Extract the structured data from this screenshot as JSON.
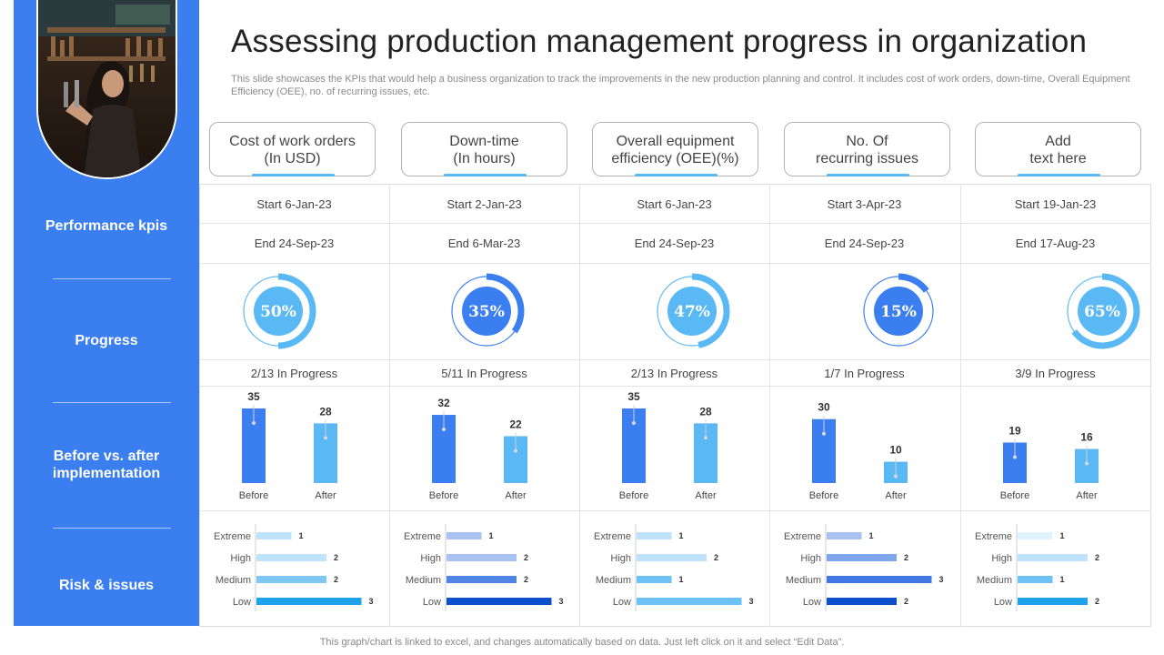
{
  "title": "Assessing production management progress in organization",
  "subtitle": "This slide showcases the KPIs that would help a business organization to track the improvements in the new production planning and control. It includes cost of work orders, down-time, Overall Equipment Efficiency (OEE), no. of recurring issues, etc.",
  "footer": "This graph/chart is linked to excel,  and changes automatically based on data. Just left click on it and select “Edit Data”.",
  "sidebar": {
    "labels": [
      "Performance kpis",
      "Progress",
      "Before vs. after implementation",
      "Risk & issues"
    ]
  },
  "colors": {
    "sidebar": "#3b7ef0",
    "before_bar": "#3b7ef0",
    "after_bar": "#5ab8f5",
    "accent": "#5ab8f5"
  },
  "columns": [
    {
      "header_line1": "Cost of work orders",
      "header_line2": "(In USD)",
      "start": "Start  6-Jan-23",
      "end": "End   24-Sep-23",
      "progress_pct": 50,
      "progress_label": "50%",
      "in_progress": "2/13 In Progress"
    },
    {
      "header_line1": "Down-time",
      "header_line2": "(In hours)",
      "start": "Start  2-Jan-23",
      "end": "End    6-Mar-23",
      "progress_pct": 35,
      "progress_label": "35%",
      "in_progress": "5/11 In Progress"
    },
    {
      "header_line1": "Overall equipment",
      "header_line2": "efficiency (OEE)(%)",
      "start": "Start  6-Jan-23",
      "end": "End   24-Sep-23",
      "progress_pct": 47,
      "progress_label": "47%",
      "in_progress": "2/13 In Progress"
    },
    {
      "header_line1": "No. Of",
      "header_line2": "recurring issues",
      "start": "Start  3-Apr-23",
      "end": "End   24-Sep-23",
      "progress_pct": 15,
      "progress_label": "15%",
      "in_progress": "1/7 In Progress"
    },
    {
      "header_line1": "Add",
      "header_line2": "text here",
      "start": "Start  19-Jan-23",
      "end": "End   17-Aug-23",
      "progress_pct": 65,
      "progress_label": "65%",
      "in_progress": "3/9 In Progress"
    }
  ],
  "chart_data": [
    {
      "type": "bar",
      "categories": [
        "Before",
        "After"
      ],
      "values": [
        35,
        28
      ],
      "ylim": [
        0,
        35
      ]
    },
    {
      "type": "bar",
      "categories": [
        "Before",
        "After"
      ],
      "values": [
        32,
        22
      ],
      "ylim": [
        0,
        35
      ]
    },
    {
      "type": "bar",
      "categories": [
        "Before",
        "After"
      ],
      "values": [
        35,
        28
      ],
      "ylim": [
        0,
        35
      ]
    },
    {
      "type": "bar",
      "categories": [
        "Before",
        "After"
      ],
      "values": [
        30,
        10
      ],
      "ylim": [
        0,
        35
      ]
    },
    {
      "type": "bar",
      "categories": [
        "Before",
        "After"
      ],
      "values": [
        19,
        16
      ],
      "ylim": [
        0,
        35
      ]
    },
    {
      "type": "bar",
      "orientation": "horizontal",
      "categories": [
        "Extreme",
        "High",
        "Medium",
        "Low"
      ],
      "values": [
        1,
        2,
        2,
        3
      ],
      "colors": [
        "#bfe3fa",
        "#bfe3fa",
        "#7fc8f6",
        "#1ea3ea"
      ],
      "xlim": [
        0,
        3
      ]
    },
    {
      "type": "bar",
      "orientation": "horizontal",
      "categories": [
        "Extreme",
        "High",
        "Medium",
        "Low"
      ],
      "values": [
        1,
        2,
        2,
        3
      ],
      "colors": [
        "#a7c2ee",
        "#a7c2ee",
        "#4f86e6",
        "#0c4fcc"
      ],
      "xlim": [
        0,
        3
      ]
    },
    {
      "type": "bar",
      "orientation": "horizontal",
      "categories": [
        "Extreme",
        "High",
        "Medium",
        "Low"
      ],
      "values": [
        1,
        2,
        1,
        3
      ],
      "colors": [
        "#bfe3fa",
        "#bfe3fa",
        "#6cc1f5",
        "#6cc1f5"
      ],
      "xlim": [
        0,
        3
      ]
    },
    {
      "type": "bar",
      "orientation": "horizontal",
      "categories": [
        "Extreme",
        "High",
        "Medium",
        "Low"
      ],
      "values": [
        1,
        2,
        3,
        2
      ],
      "colors": [
        "#a7c2ee",
        "#7ea6ea",
        "#3f78e2",
        "#0c4fcc"
      ],
      "xlim": [
        0,
        3
      ]
    },
    {
      "type": "bar",
      "orientation": "horizontal",
      "categories": [
        "Extreme",
        "High",
        "Medium",
        "Low"
      ],
      "values": [
        1,
        2,
        1,
        2
      ],
      "colors": [
        "#dff2fd",
        "#bfe3fa",
        "#6cc1f5",
        "#1ea3ea"
      ],
      "xlim": [
        0,
        3
      ]
    }
  ]
}
